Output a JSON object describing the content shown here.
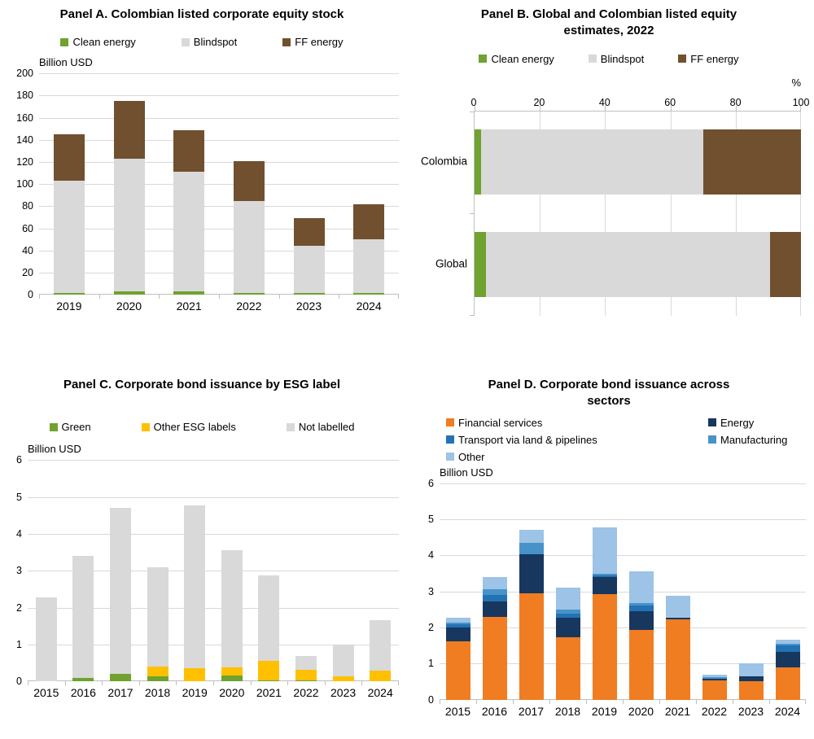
{
  "chart_data": [
    {
      "id": "panel_a",
      "type": "bar",
      "stacked": true,
      "orientation": "vertical",
      "title": "Panel A. Colombian listed corporate equity stock",
      "unit_label": "Billion USD",
      "categories": [
        "2019",
        "2020",
        "2021",
        "2022",
        "2023",
        "2024"
      ],
      "series": [
        {
          "name": "Clean energy",
          "color": "#6FA22E",
          "values": [
            2,
            3,
            3,
            2,
            1.5,
            2
          ]
        },
        {
          "name": "Blindspot",
          "color": "#D9D9D9",
          "values": [
            101,
            120,
            108,
            83,
            42.5,
            48
          ]
        },
        {
          "name": "FF energy",
          "color": "#71502F",
          "values": [
            42,
            52,
            38,
            36,
            25,
            32
          ]
        }
      ],
      "ylim": [
        0,
        200
      ],
      "ytick_step": 20,
      "grid": true,
      "legend_position": "top"
    },
    {
      "id": "panel_b",
      "type": "bar",
      "stacked": true,
      "orientation": "horizontal",
      "title": "Panel B. Global and Colombian listed equity estimates, 2022",
      "unit_label": "%",
      "categories": [
        "Colombia",
        "Global"
      ],
      "series": [
        {
          "name": "Clean energy",
          "color": "#6FA22E",
          "values": [
            2,
            3.5
          ]
        },
        {
          "name": "Blindspot",
          "color": "#D9D9D9",
          "values": [
            68,
            87
          ]
        },
        {
          "name": "FF energy",
          "color": "#71502F",
          "values": [
            30,
            9.5
          ]
        }
      ],
      "xlim": [
        0,
        100
      ],
      "xtick_step": 20,
      "grid": true,
      "legend_position": "top"
    },
    {
      "id": "panel_c",
      "type": "bar",
      "stacked": true,
      "orientation": "vertical",
      "title": "Panel C. Corporate bond issuance by ESG label",
      "unit_label": "Billion USD",
      "categories": [
        "2015",
        "2016",
        "2017",
        "2018",
        "2019",
        "2020",
        "2021",
        "2022",
        "2023",
        "2024"
      ],
      "series": [
        {
          "name": "Green",
          "color": "#6FA22E",
          "values": [
            0,
            0.1,
            0.2,
            0.13,
            0,
            0.15,
            0.03,
            0.02,
            0,
            0
          ]
        },
        {
          "name": "Other ESG labels",
          "color": "#FFC000",
          "values": [
            0,
            0,
            0,
            0.27,
            0.35,
            0.23,
            0.53,
            0.3,
            0.13,
            0.3
          ]
        },
        {
          "name": "Not labelled",
          "color": "#D9D9D9",
          "values": [
            2.27,
            3.3,
            4.5,
            2.7,
            4.42,
            3.17,
            2.31,
            0.36,
            0.87,
            1.35
          ]
        }
      ],
      "ylim": [
        0,
        6
      ],
      "ytick_step": 1,
      "grid": true,
      "legend_position": "top"
    },
    {
      "id": "panel_d",
      "type": "bar",
      "stacked": true,
      "orientation": "vertical",
      "title": "Panel D. Corporate bond issuance across sectors",
      "unit_label": "Billion USD",
      "categories": [
        "2015",
        "2016",
        "2017",
        "2018",
        "2019",
        "2020",
        "2021",
        "2022",
        "2023",
        "2024"
      ],
      "series": [
        {
          "name": "Financial services",
          "color": "#F07D22",
          "values": [
            1.62,
            2.3,
            2.95,
            1.72,
            2.93,
            1.93,
            2.22,
            0.52,
            0.5,
            0.9
          ]
        },
        {
          "name": "Energy",
          "color": "#17375E",
          "values": [
            0.38,
            0.42,
            1.07,
            0.55,
            0.47,
            0.52,
            0.05,
            0.06,
            0.15,
            0.42
          ]
        },
        {
          "name": "Transport via land & pipelines",
          "color": "#2272B4",
          "values": [
            0.08,
            0.18,
            0,
            0.1,
            0.04,
            0.15,
            0,
            0,
            0,
            0.18
          ]
        },
        {
          "name": "Manufacturing",
          "color": "#4793C9",
          "values": [
            0.05,
            0.15,
            0.33,
            0.13,
            0.04,
            0.07,
            0,
            0.03,
            0,
            0.05
          ]
        },
        {
          "name": "Other",
          "color": "#9DC3E6",
          "values": [
            0.14,
            0.35,
            0.35,
            0.6,
            1.29,
            0.88,
            0.6,
            0.07,
            0.35,
            0.1
          ]
        }
      ],
      "ylim": [
        0,
        6
      ],
      "ytick_step": 1,
      "grid": true,
      "legend_position": "top"
    }
  ]
}
